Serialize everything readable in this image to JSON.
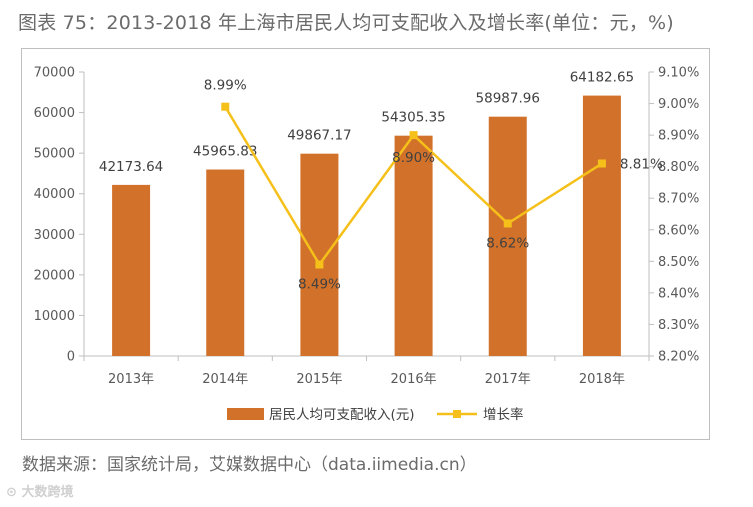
{
  "figure": {
    "title": "图表 75：2013-2018 年上海市居民人均可支配收入及增长率(单位：元，%)",
    "source": "数据来源：国家统计局，艾媒数据中心（data.iimedia.cn）",
    "watermark": "大数跨境"
  },
  "chart_data": {
    "type": "bar",
    "title": "",
    "categories": [
      "2013年",
      "2014年",
      "2015年",
      "2016年",
      "2017年",
      "2018年"
    ],
    "series": [
      {
        "name": "居民人均可支配收入(元)",
        "type": "bar",
        "axis": "left",
        "color": "#D2722A",
        "values": [
          42173.64,
          45965.83,
          49867.17,
          54305.35,
          58987.96,
          64182.65
        ],
        "labels": [
          "42173.64",
          "45965.83",
          "49867.17",
          "54305.35",
          "58987.96",
          "64182.65"
        ]
      },
      {
        "name": "增长率",
        "type": "line",
        "axis": "right",
        "color": "#F5C01A",
        "values": [
          null,
          8.99,
          8.49,
          8.9,
          8.62,
          8.81
        ],
        "labels": [
          "",
          "8.99%",
          "8.49%",
          "8.90%",
          "8.62%",
          "8.81%"
        ]
      }
    ],
    "y_left": {
      "min": 0,
      "max": 70000,
      "ticks": [
        "0",
        "10000",
        "20000",
        "30000",
        "40000",
        "50000",
        "60000",
        "70000"
      ]
    },
    "y_right": {
      "min": 8.2,
      "max": 9.1,
      "ticks": [
        "8.20%",
        "8.30%",
        "8.40%",
        "8.50%",
        "8.60%",
        "8.70%",
        "8.80%",
        "8.90%",
        "9.00%",
        "9.10%"
      ]
    },
    "grid": false,
    "legend_position": "bottom"
  }
}
